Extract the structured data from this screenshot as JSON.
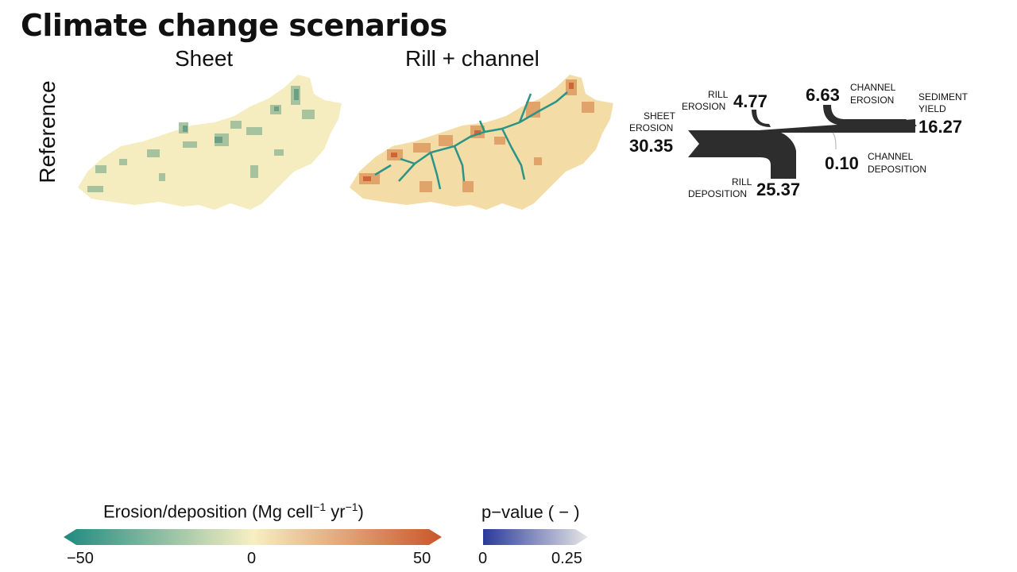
{
  "title": "Climate change scenarios",
  "columns": [
    "Sheet",
    "Rill + channel"
  ],
  "rows": [
    "Reference"
  ],
  "flow": {
    "sheet_erosion": {
      "label1": "SHEET",
      "label2": "EROSION",
      "value": "30.35"
    },
    "rill_erosion": {
      "label1": "RILL",
      "label2": "EROSION",
      "value": "4.77"
    },
    "rill_deposition": {
      "label1": "RILL",
      "label2": "DEPOSITION",
      "value": "25.37"
    },
    "channel_erosion": {
      "label1": "CHANNEL",
      "label2": "EROSION",
      "value": "6.63"
    },
    "channel_deposition": {
      "label1": "CHANNEL",
      "label2": "DEPOSITION",
      "value": "0.10"
    },
    "sediment_yield": {
      "label1": "SEDIMENT",
      "label2": "YIELD",
      "value": "16.27"
    }
  },
  "legend_erosion": {
    "title_main": "Erosion/deposition (Mg cell",
    "sup1": "−1",
    "title_mid": " yr",
    "sup2": "−1",
    "title_end": ")",
    "ticks": [
      "−50",
      "0",
      "50"
    ],
    "colors": [
      "#1f8a80",
      "#f7efc2",
      "#c9562a"
    ]
  },
  "legend_pvalue": {
    "title": "p−value ( − )",
    "ticks": [
      "0",
      "0.25"
    ],
    "colors": [
      "#2a3a9a",
      "#e6e6e6"
    ]
  }
}
